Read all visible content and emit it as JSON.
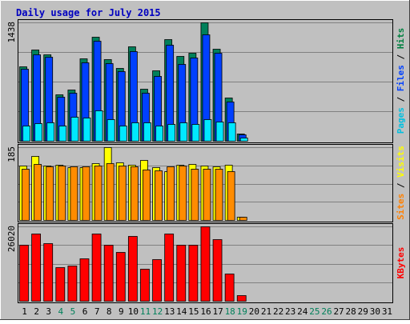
{
  "chart_data": {
    "type": "bar",
    "title": "Daily usage for July 2015",
    "days": [
      "1",
      "2",
      "3",
      "4",
      "5",
      "6",
      "7",
      "8",
      "9",
      "10",
      "11",
      "12",
      "13",
      "14",
      "15",
      "16",
      "17",
      "18",
      "19",
      "20",
      "21",
      "22",
      "23",
      "24",
      "25",
      "26",
      "27",
      "28",
      "29",
      "30",
      "31"
    ],
    "weekend_days": [
      4,
      5,
      11,
      12,
      18,
      19,
      25,
      26
    ],
    "panels": [
      {
        "id": "requests",
        "max_label": "1438",
        "ymax": 1438,
        "side_label": [
          {
            "text": "Pages",
            "color": "#00c0e0"
          },
          {
            "text": " / ",
            "color": "#000000"
          },
          {
            "text": "Files",
            "color": "#0040ff"
          },
          {
            "text": " / ",
            "color": "#000000"
          },
          {
            "text": "Hits",
            "color": "#008040"
          }
        ],
        "series": [
          {
            "name": "Hits",
            "color": "#00805a",
            "values": [
              907,
              1103,
              1050,
              564,
              626,
              1000,
              1262,
              994,
              883,
              1144,
              629,
              855,
              1235,
              1034,
              1067,
              1438,
              1119,
              529,
              86
            ]
          },
          {
            "name": "Files",
            "color": "#0040ff",
            "values": [
              872,
              1049,
              1024,
              535,
              582,
              949,
              1215,
              941,
              846,
              1088,
              585,
              788,
              1166,
              935,
              1006,
              1295,
              1069,
              473,
              74
            ]
          },
          {
            "name": "Pages",
            "color": "#00e8ff",
            "values": [
              185,
              209,
              219,
              185,
              290,
              277,
              371,
              258,
              185,
              222,
              222,
              185,
              200,
              222,
              200,
              262,
              233,
              222,
              38
            ]
          }
        ]
      },
      {
        "id": "visits",
        "max_label": "185",
        "ymax": 185,
        "side_label": [
          {
            "text": "Sites",
            "color": "#ff8000"
          },
          {
            "text": " / ",
            "color": "#000000"
          },
          {
            "text": "Visits",
            "color": "#ffff00"
          }
        ],
        "series": [
          {
            "name": "Visits",
            "color": "#ffff00",
            "values": [
              139,
              162,
              138,
              140,
              134,
              134,
              145,
              185,
              146,
              140,
              152,
              134,
              124,
              141,
              143,
              139,
              136,
              141,
              8
            ]
          },
          {
            "name": "Sites",
            "color": "#ff8c00",
            "values": [
              130,
              143,
              136,
              139,
              136,
              136,
              138,
              145,
              139,
              136,
              128,
              126,
              136,
              139,
              130,
              130,
              130,
              124,
              8
            ]
          }
        ]
      },
      {
        "id": "kbytes",
        "max_label": "26020",
        "ymax": 26020,
        "side_label": [
          {
            "text": "KBytes",
            "color": "#ff0000"
          }
        ],
        "series": [
          {
            "name": "KBytes",
            "color": "#ff0000",
            "values": [
              19600,
              23500,
              20200,
              11800,
              12200,
              14800,
              23500,
              19600,
              17200,
              22800,
              11300,
              14600,
              23500,
              19600,
              19600,
              26020,
              21600,
              9400,
              2000
            ]
          }
        ]
      }
    ],
    "colors": {
      "page_bg": "#c0c0c0",
      "title": "#0000c0",
      "plot_bg": "#c0c0c0",
      "gridline": "#808080",
      "weekday_label": "#000000",
      "weekend_label": "#00805a"
    }
  }
}
